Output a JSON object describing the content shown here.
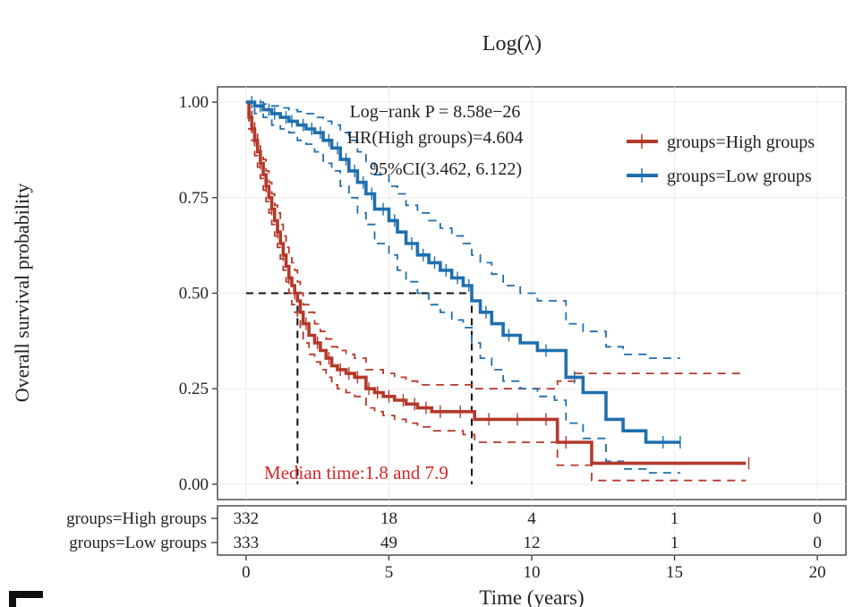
{
  "chart_data": {
    "type": "line",
    "title": "Log(λ)",
    "xlabel": "Time (years)",
    "ylabel": "Overall survival probability",
    "xlim": [
      -1,
      21
    ],
    "ylim": [
      -0.04,
      1.04
    ],
    "x_ticks": [
      "0",
      "5",
      "10",
      "15",
      "20"
    ],
    "y_ticks": [
      "0.00",
      "0.25",
      "0.50",
      "0.75",
      "1.00"
    ],
    "legend_position": "top-right",
    "annotations": {
      "logrank": "Log−rank P = 8.58e−26",
      "hr": "HR(High groups)=4.604",
      "ci": "95%CI(3.462, 6.122)",
      "median": "Median time:1.8 and 7.9"
    },
    "medians": [
      1.8,
      7.9
    ],
    "series": [
      {
        "name": "groups=High groups",
        "color": "#b5392b",
        "x": [
          0,
          0.1,
          0.2,
          0.3,
          0.4,
          0.5,
          0.6,
          0.7,
          0.8,
          0.9,
          1.0,
          1.1,
          1.2,
          1.3,
          1.4,
          1.5,
          1.6,
          1.7,
          1.8,
          1.9,
          2.0,
          2.2,
          2.4,
          2.6,
          2.8,
          3.0,
          3.2,
          3.5,
          3.8,
          4.2,
          4.5,
          4.8,
          5.2,
          5.6,
          6.0,
          6.5,
          7.0,
          7.3,
          7.6,
          8.0,
          9.0,
          10.0,
          10.9,
          11.5,
          12.1,
          15.0,
          17.5
        ],
        "y": [
          1.0,
          0.96,
          0.93,
          0.9,
          0.87,
          0.84,
          0.81,
          0.78,
          0.75,
          0.72,
          0.69,
          0.66,
          0.63,
          0.6,
          0.57,
          0.54,
          0.52,
          0.5,
          0.48,
          0.45,
          0.42,
          0.39,
          0.37,
          0.35,
          0.33,
          0.31,
          0.3,
          0.29,
          0.28,
          0.25,
          0.24,
          0.23,
          0.22,
          0.21,
          0.2,
          0.19,
          0.19,
          0.19,
          0.19,
          0.17,
          0.17,
          0.17,
          0.11,
          0.11,
          0.055,
          0.055,
          0.055
        ],
        "ci_upper": [
          1.0,
          0.98,
          0.96,
          0.93,
          0.9,
          0.87,
          0.85,
          0.82,
          0.79,
          0.76,
          0.73,
          0.71,
          0.68,
          0.65,
          0.62,
          0.6,
          0.58,
          0.56,
          0.53,
          0.5,
          0.47,
          0.45,
          0.42,
          0.4,
          0.38,
          0.36,
          0.35,
          0.34,
          0.33,
          0.3,
          0.3,
          0.29,
          0.28,
          0.27,
          0.26,
          0.26,
          0.26,
          0.26,
          0.26,
          0.25,
          0.25,
          0.25,
          0.27,
          0.29,
          0.29,
          0.29,
          0.29
        ],
        "ci_lower": [
          1.0,
          0.93,
          0.9,
          0.86,
          0.83,
          0.8,
          0.77,
          0.74,
          0.71,
          0.68,
          0.65,
          0.62,
          0.59,
          0.56,
          0.53,
          0.5,
          0.47,
          0.45,
          0.43,
          0.4,
          0.37,
          0.34,
          0.32,
          0.3,
          0.28,
          0.26,
          0.25,
          0.24,
          0.23,
          0.2,
          0.19,
          0.18,
          0.17,
          0.16,
          0.15,
          0.14,
          0.14,
          0.14,
          0.13,
          0.11,
          0.11,
          0.11,
          0.05,
          0.05,
          0.01,
          0.01,
          0.01
        ],
        "censor_x": [
          0.3,
          0.5,
          0.7,
          0.9,
          1.1,
          1.3,
          1.5,
          1.7,
          2.1,
          2.5,
          2.9,
          3.3,
          3.6,
          3.9,
          4.3,
          4.6,
          5.0,
          5.5,
          5.9,
          6.3,
          6.8,
          7.5,
          8.5,
          9.5,
          10.5,
          11.2,
          17.6
        ]
      },
      {
        "name": "groups=Low groups",
        "color": "#1f6fae",
        "x": [
          0,
          0.3,
          0.6,
          0.9,
          1.2,
          1.5,
          1.8,
          2.1,
          2.4,
          2.7,
          3.0,
          3.3,
          3.6,
          3.9,
          4.2,
          4.5,
          5.0,
          5.3,
          5.6,
          6.0,
          6.4,
          6.8,
          7.2,
          7.6,
          7.9,
          8.2,
          8.6,
          9.0,
          9.6,
          10.2,
          10.8,
          11.2,
          11.8,
          12.6,
          13.2,
          14.0,
          14.5,
          15.2
        ],
        "y": [
          1.0,
          0.99,
          0.98,
          0.97,
          0.96,
          0.95,
          0.94,
          0.93,
          0.92,
          0.9,
          0.88,
          0.85,
          0.82,
          0.79,
          0.76,
          0.72,
          0.69,
          0.66,
          0.63,
          0.6,
          0.58,
          0.56,
          0.54,
          0.52,
          0.48,
          0.45,
          0.42,
          0.39,
          0.37,
          0.35,
          0.35,
          0.28,
          0.24,
          0.17,
          0.14,
          0.11,
          0.11,
          0.11
        ],
        "ci_upper": [
          1.0,
          1.0,
          0.995,
          0.99,
          0.985,
          0.98,
          0.975,
          0.97,
          0.96,
          0.95,
          0.94,
          0.92,
          0.9,
          0.87,
          0.84,
          0.81,
          0.78,
          0.76,
          0.73,
          0.71,
          0.69,
          0.67,
          0.65,
          0.63,
          0.6,
          0.58,
          0.55,
          0.52,
          0.5,
          0.48,
          0.48,
          0.42,
          0.4,
          0.36,
          0.34,
          0.33,
          0.33,
          0.33
        ],
        "ci_lower": [
          1.0,
          0.97,
          0.96,
          0.94,
          0.93,
          0.92,
          0.9,
          0.89,
          0.87,
          0.84,
          0.82,
          0.78,
          0.75,
          0.71,
          0.68,
          0.63,
          0.6,
          0.56,
          0.53,
          0.5,
          0.47,
          0.45,
          0.43,
          0.41,
          0.37,
          0.33,
          0.3,
          0.27,
          0.25,
          0.23,
          0.22,
          0.16,
          0.12,
          0.06,
          0.04,
          0.03,
          0.03,
          0.03
        ],
        "censor_x": [
          0.2,
          0.5,
          0.8,
          1.0,
          1.4,
          1.6,
          2.0,
          2.3,
          2.6,
          2.9,
          3.2,
          3.5,
          3.8,
          4.1,
          4.4,
          4.8,
          5.2,
          5.8,
          6.2,
          6.6,
          7.0,
          7.4,
          7.8,
          8.4,
          9.2,
          10.5,
          11.5,
          14.6,
          15.2
        ]
      }
    ],
    "risk_table": {
      "times": [
        0,
        5,
        10,
        15,
        20
      ],
      "rows": [
        {
          "label": "groups=High groups",
          "color": "#b5392b",
          "values": [
            "332",
            "18",
            "4",
            "1",
            "0"
          ]
        },
        {
          "label": "groups=Low groups",
          "color": "#1f6fae",
          "values": [
            "333",
            "49",
            "12",
            "1",
            "0"
          ]
        }
      ]
    }
  }
}
